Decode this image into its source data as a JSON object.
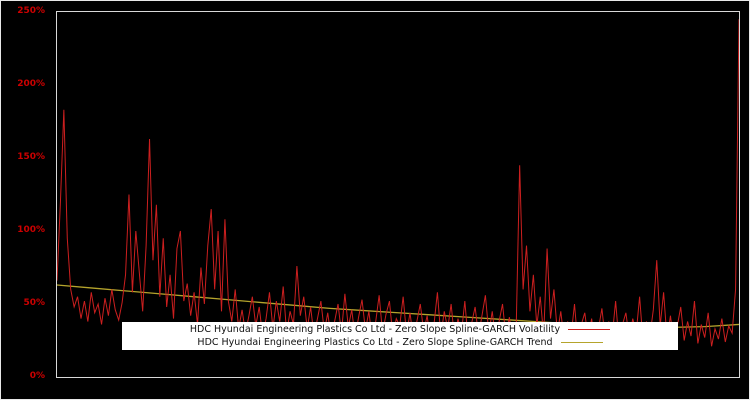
{
  "chart_data": {
    "type": "line",
    "title": "",
    "xlabel": "",
    "ylabel": "",
    "ylim": [
      0,
      250
    ],
    "y_ticks": [
      "0%",
      "50%",
      "100%",
      "150%",
      "200%",
      "250%"
    ],
    "grid": false,
    "legend_position": "bottom-center",
    "background_color": "#000000",
    "axis_label_color": "#cc0000",
    "series": [
      {
        "name": "HDC Hyundai Engineering Plastics Co Ltd - Zero Slope Spline-GARCH Volatility",
        "color": "#cc1f1f",
        "unit": "percent",
        "values": [
          66,
          120,
          183,
          95,
          60,
          48,
          55,
          40,
          52,
          38,
          58,
          44,
          50,
          36,
          54,
          42,
          60,
          46,
          39,
          51,
          70,
          125,
          58,
          100,
          72,
          45,
          90,
          163,
          80,
          118,
          55,
          95,
          48,
          70,
          40,
          88,
          100,
          52,
          64,
          42,
          58,
          36,
          75,
          50,
          90,
          115,
          60,
          100,
          45,
          108,
          52,
          38,
          60,
          33,
          46,
          30,
          42,
          55,
          35,
          48,
          28,
          40,
          58,
          33,
          52,
          38,
          62,
          30,
          45,
          36,
          76,
          42,
          55,
          33,
          48,
          28,
          40,
          52,
          31,
          44,
          26,
          38,
          50,
          30,
          57,
          34,
          46,
          27,
          41,
          53,
          32,
          45,
          25,
          38,
          56,
          30,
          43,
          52,
          28,
          40,
          35,
          55,
          29,
          44,
          26,
          38,
          50,
          31,
          42,
          24,
          36,
          58,
          28,
          45,
          33,
          50,
          26,
          40,
          30,
          52,
          24,
          37,
          48,
          28,
          42,
          56,
          30,
          45,
          25,
          38,
          50,
          27,
          41,
          23,
          35,
          145,
          60,
          90,
          45,
          70,
          35,
          55,
          28,
          88,
          40,
          60,
          30,
          45,
          24,
          38,
          28,
          50,
          22,
          36,
          44,
          26,
          40,
          21,
          33,
          47,
          25,
          38,
          28,
          52,
          23,
          36,
          44,
          26,
          40,
          30,
          55,
          24,
          38,
          28,
          46,
          80,
          35,
          58,
          26,
          42,
          22,
          35,
          48,
          25,
          38,
          28,
          52,
          23,
          36,
          27,
          44,
          21,
          33,
          26,
          40,
          24,
          35,
          30,
          60,
          245
        ]
      },
      {
        "name": "HDC Hyundai Engineering Plastics Co Ltd - Zero Slope Spline-GARCH Trend",
        "color": "#b5a42c",
        "unit": "percent",
        "values": [
          63,
          61,
          59,
          57,
          55,
          53,
          51,
          49,
          47,
          45.5,
          44,
          42.5,
          41,
          39.5,
          38,
          36.5,
          35.5,
          34.5,
          34,
          34.5,
          36
        ]
      }
    ]
  }
}
